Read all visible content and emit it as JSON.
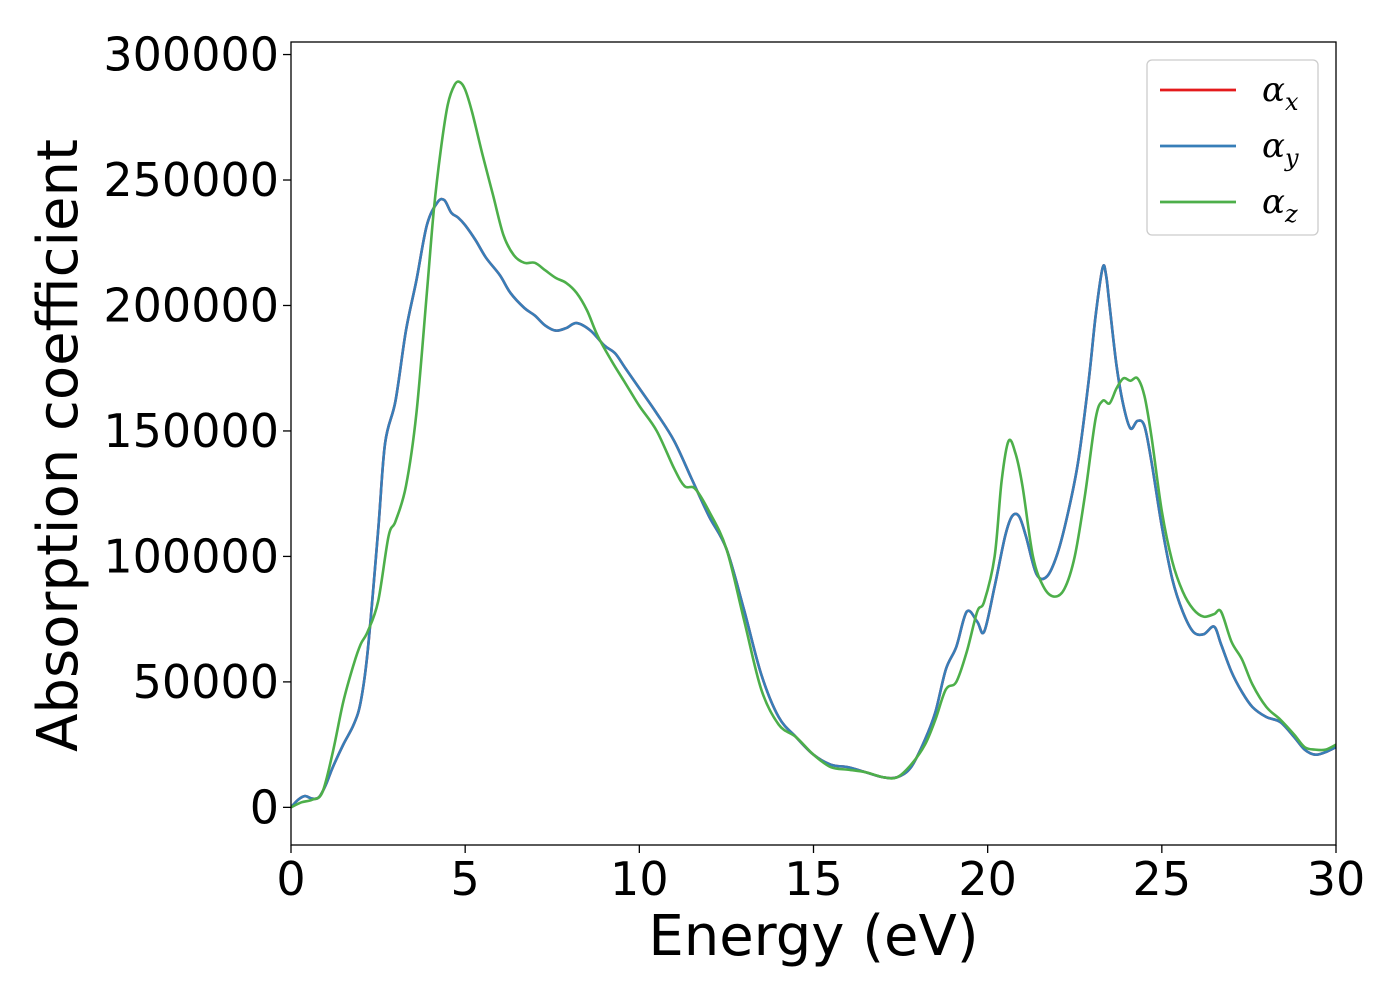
{
  "chart_data": {
    "type": "line",
    "title": "",
    "xlabel": "Energy (eV)",
    "ylabel": "Absorption coefficient",
    "xlim": [
      0,
      30
    ],
    "ylim": [
      -15000,
      305000
    ],
    "xticks": [
      0,
      5,
      10,
      15,
      20,
      25,
      30
    ],
    "yticks": [
      0,
      50000,
      100000,
      150000,
      200000,
      250000,
      300000
    ],
    "grid": false,
    "legend_position": "top-right",
    "series": [
      {
        "name": "α",
        "subscript": "x",
        "color": "#e41a1c",
        "x": [
          0,
          0.2,
          0.4,
          0.6,
          0.8,
          1.0,
          1.2,
          1.5,
          1.8,
          2.0,
          2.2,
          2.5,
          2.7,
          3.0,
          3.3,
          3.6,
          3.9,
          4.2,
          4.4,
          4.6,
          4.8,
          5.0,
          5.3,
          5.6,
          6.0,
          6.3,
          6.7,
          7.0,
          7.3,
          7.6,
          7.9,
          8.2,
          8.6,
          9.0,
          9.3,
          9.6,
          10.0,
          10.5,
          11.0,
          11.5,
          12.0,
          12.5,
          13.0,
          13.5,
          14.0,
          14.5,
          15.0,
          15.5,
          16.0,
          16.5,
          17.0,
          17.4,
          17.8,
          18.2,
          18.5,
          18.8,
          19.1,
          19.4,
          19.7,
          19.9,
          20.2,
          20.5,
          20.7,
          20.9,
          21.1,
          21.4,
          21.7,
          22.0,
          22.3,
          22.6,
          22.9,
          23.1,
          23.3,
          23.4,
          23.5,
          23.7,
          23.9,
          24.1,
          24.3,
          24.5,
          24.7,
          25.0,
          25.3,
          25.6,
          25.9,
          26.2,
          26.5,
          26.7,
          27.0,
          27.3,
          27.6,
          28.0,
          28.4,
          28.8,
          29.1,
          29.4,
          29.7,
          30.0
        ],
        "y": [
          0,
          3000,
          4500,
          3500,
          4000,
          9000,
          16000,
          25000,
          33000,
          42000,
          62000,
          110000,
          145000,
          162000,
          190000,
          210000,
          232000,
          241000,
          242000,
          237000,
          235000,
          232000,
          226000,
          219000,
          212000,
          205000,
          199000,
          196000,
          192000,
          190000,
          191000,
          193000,
          190000,
          184000,
          181000,
          175000,
          167000,
          157000,
          146000,
          131000,
          116000,
          103000,
          79000,
          53000,
          36000,
          28000,
          21000,
          17000,
          16000,
          14000,
          12000,
          12000,
          16000,
          27000,
          38000,
          55000,
          64000,
          78000,
          74000,
          70000,
          88000,
          108000,
          116000,
          116000,
          108000,
          93000,
          92000,
          101000,
          117000,
          138000,
          170000,
          196000,
          215000,
          212000,
          200000,
          176000,
          160000,
          151000,
          154000,
          152000,
          138000,
          112000,
          91000,
          78000,
          70000,
          69000,
          72000,
          65000,
          54000,
          46000,
          40000,
          36000,
          34000,
          28000,
          23000,
          21000,
          22000,
          24000
        ]
      },
      {
        "name": "α",
        "subscript": "y",
        "color": "#377eb8",
        "x": [
          0,
          0.2,
          0.4,
          0.6,
          0.8,
          1.0,
          1.2,
          1.5,
          1.8,
          2.0,
          2.2,
          2.5,
          2.7,
          3.0,
          3.3,
          3.6,
          3.9,
          4.2,
          4.4,
          4.6,
          4.8,
          5.0,
          5.3,
          5.6,
          6.0,
          6.3,
          6.7,
          7.0,
          7.3,
          7.6,
          7.9,
          8.2,
          8.6,
          9.0,
          9.3,
          9.6,
          10.0,
          10.5,
          11.0,
          11.5,
          12.0,
          12.5,
          13.0,
          13.5,
          14.0,
          14.5,
          15.0,
          15.5,
          16.0,
          16.5,
          17.0,
          17.4,
          17.8,
          18.2,
          18.5,
          18.8,
          19.1,
          19.4,
          19.7,
          19.9,
          20.2,
          20.5,
          20.7,
          20.9,
          21.1,
          21.4,
          21.7,
          22.0,
          22.3,
          22.6,
          22.9,
          23.1,
          23.3,
          23.4,
          23.5,
          23.7,
          23.9,
          24.1,
          24.3,
          24.5,
          24.7,
          25.0,
          25.3,
          25.6,
          25.9,
          26.2,
          26.5,
          26.7,
          27.0,
          27.3,
          27.6,
          28.0,
          28.4,
          28.8,
          29.1,
          29.4,
          29.7,
          30.0
        ],
        "y": [
          0,
          3000,
          4500,
          3500,
          4000,
          9000,
          16000,
          25000,
          33000,
          42000,
          62000,
          110000,
          145000,
          162000,
          190000,
          210000,
          232000,
          241000,
          242000,
          237000,
          235000,
          232000,
          226000,
          219000,
          212000,
          205000,
          199000,
          196000,
          192000,
          190000,
          191000,
          193000,
          190000,
          184000,
          181000,
          175000,
          167000,
          157000,
          146000,
          131000,
          116000,
          103000,
          79000,
          53000,
          36000,
          28000,
          21000,
          17000,
          16000,
          14000,
          12000,
          12000,
          16000,
          27000,
          38000,
          55000,
          64000,
          78000,
          74000,
          70000,
          88000,
          108000,
          116000,
          116000,
          108000,
          93000,
          92000,
          101000,
          117000,
          138000,
          170000,
          196000,
          215000,
          212000,
          200000,
          176000,
          160000,
          151000,
          154000,
          152000,
          138000,
          112000,
          91000,
          78000,
          70000,
          69000,
          72000,
          65000,
          54000,
          46000,
          40000,
          36000,
          34000,
          28000,
          23000,
          21000,
          22000,
          24000
        ]
      },
      {
        "name": "α",
        "subscript": "z",
        "color": "#4daf4a",
        "x": [
          0,
          0.3,
          0.6,
          0.9,
          1.2,
          1.5,
          1.8,
          2.0,
          2.2,
          2.5,
          2.8,
          3.0,
          3.3,
          3.6,
          3.9,
          4.1,
          4.3,
          4.5,
          4.7,
          4.85,
          5.0,
          5.2,
          5.5,
          5.8,
          6.1,
          6.4,
          6.7,
          7.0,
          7.3,
          7.6,
          7.9,
          8.2,
          8.5,
          8.8,
          9.2,
          9.6,
          10.0,
          10.5,
          11.0,
          11.3,
          11.6,
          12.0,
          12.5,
          13.0,
          13.5,
          14.0,
          14.5,
          15.0,
          15.5,
          16.0,
          16.5,
          17.0,
          17.4,
          17.8,
          18.2,
          18.5,
          18.8,
          19.1,
          19.4,
          19.7,
          19.9,
          20.2,
          20.4,
          20.6,
          20.8,
          21.0,
          21.3,
          21.6,
          21.9,
          22.2,
          22.5,
          22.8,
          23.1,
          23.3,
          23.5,
          23.7,
          23.9,
          24.1,
          24.3,
          24.5,
          24.7,
          25.0,
          25.3,
          25.6,
          25.9,
          26.2,
          26.5,
          26.7,
          27.0,
          27.3,
          27.6,
          28.0,
          28.4,
          28.8,
          29.1,
          29.4,
          29.7,
          30.0
        ],
        "y": [
          0,
          2000,
          3000,
          6000,
          22000,
          42000,
          57000,
          65000,
          70000,
          82000,
          108000,
          114000,
          128000,
          157000,
          205000,
          238000,
          262000,
          280000,
          288000,
          289000,
          286000,
          277000,
          260000,
          244000,
          228000,
          220000,
          217000,
          217000,
          214000,
          211000,
          209000,
          205000,
          198000,
          188000,
          178000,
          169000,
          160000,
          150000,
          135000,
          128000,
          127000,
          118000,
          103000,
          75000,
          47000,
          33000,
          28000,
          21000,
          16000,
          15000,
          14000,
          12000,
          12000,
          17000,
          25000,
          35000,
          47000,
          50000,
          62000,
          78000,
          82000,
          100000,
          130000,
          146000,
          141000,
          128000,
          100000,
          88000,
          84000,
          87000,
          100000,
          125000,
          155000,
          162000,
          161000,
          167000,
          171000,
          170000,
          171000,
          164000,
          148000,
          118000,
          98000,
          86000,
          79000,
          76000,
          77000,
          78000,
          66000,
          59000,
          49000,
          40000,
          35000,
          29000,
          24000,
          23000,
          23000,
          25000
        ]
      }
    ]
  }
}
